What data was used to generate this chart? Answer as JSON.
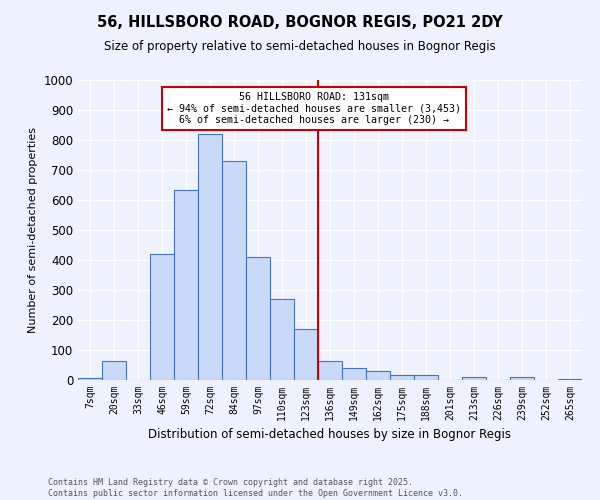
{
  "title_line1": "56, HILLSBORO ROAD, BOGNOR REGIS, PO21 2DY",
  "title_line2": "Size of property relative to semi-detached houses in Bognor Regis",
  "xlabel": "Distribution of semi-detached houses by size in Bognor Regis",
  "ylabel": "Number of semi-detached properties",
  "categories": [
    "7sqm",
    "20sqm",
    "33sqm",
    "46sqm",
    "59sqm",
    "72sqm",
    "84sqm",
    "97sqm",
    "110sqm",
    "123sqm",
    "136sqm",
    "149sqm",
    "162sqm",
    "175sqm",
    "188sqm",
    "201sqm",
    "213sqm",
    "226sqm",
    "239sqm",
    "252sqm",
    "265sqm"
  ],
  "bar_heights": [
    8,
    65,
    0,
    420,
    635,
    820,
    730,
    410,
    270,
    170,
    65,
    40,
    30,
    18,
    18,
    0,
    10,
    0,
    10,
    0,
    5
  ],
  "bar_color": "#c9daf8",
  "bar_edge_color": "#4472c4",
  "annotation_text_line1": "56 HILLSBORO ROAD: 131sqm",
  "annotation_text_line2": "← 94% of semi-detached houses are smaller (3,453)",
  "annotation_text_line3": "6% of semi-detached houses are larger (230) →",
  "vline_color": "#cc0000",
  "vline_x": 9.5,
  "ylim": [
    0,
    1000
  ],
  "yticks": [
    0,
    100,
    200,
    300,
    400,
    500,
    600,
    700,
    800,
    900,
    1000
  ],
  "footer_text": "Contains HM Land Registry data © Crown copyright and database right 2025.\nContains public sector information licensed under the Open Government Licence v3.0.",
  "bg_color": "#eef2ff",
  "grid_color": "#ffffff"
}
